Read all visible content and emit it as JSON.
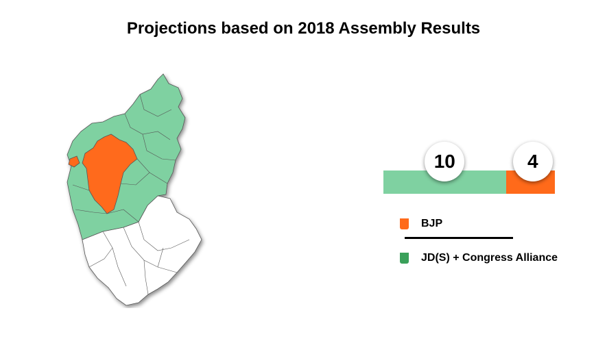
{
  "chart_data": {
    "type": "bar",
    "title": "Projections based on 2018 Assembly Results",
    "orientation": "horizontal-stacked",
    "series": [
      {
        "name": "JD(S) + Congress Alliance",
        "value": 10,
        "color": "#7fd1a1"
      },
      {
        "name": "BJP",
        "value": 4,
        "color": "#ff6a1a"
      }
    ],
    "legend": [
      {
        "label": "BJP",
        "color": "#ff6a1a"
      },
      {
        "label": "JD(S) + Congress Alliance",
        "color": "#3aa05a"
      }
    ]
  },
  "map": {
    "colors": {
      "alliance": "#7fd1a1",
      "bjp": "#ff6a1a",
      "other": "#ffffff",
      "border": "#555555"
    }
  }
}
